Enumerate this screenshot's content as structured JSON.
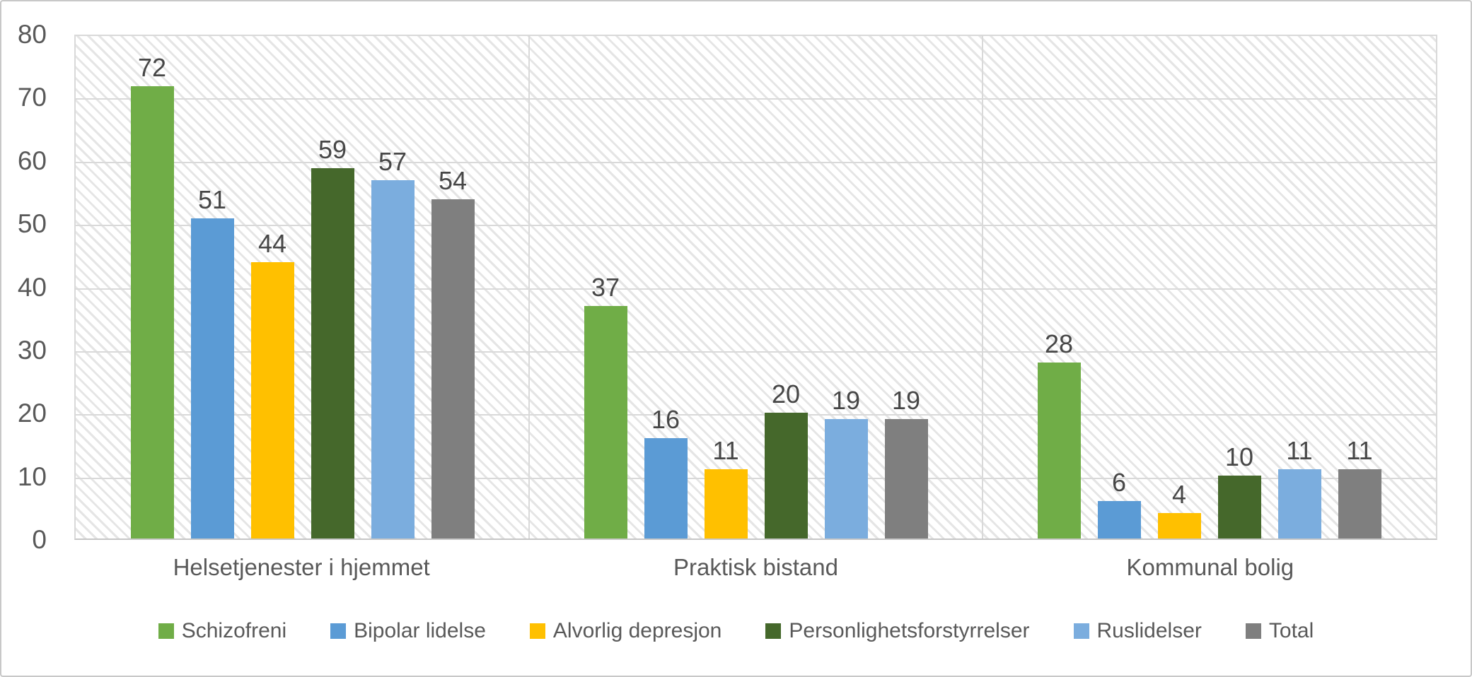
{
  "chart_data": {
    "type": "bar",
    "title": "",
    "xlabel": "",
    "ylabel": "",
    "categories": [
      "Helsetjenester i hjemmet",
      "Praktisk bistand",
      "Kommunal bolig"
    ],
    "series": [
      {
        "name": "Schizofreni",
        "color": "#70AD47",
        "values": [
          72,
          37,
          28
        ]
      },
      {
        "name": "Bipolar lidelse",
        "color": "#5B9BD5",
        "values": [
          51,
          16,
          6
        ]
      },
      {
        "name": "Alvorlig depresjon",
        "color": "#FFC000",
        "values": [
          44,
          11,
          4
        ]
      },
      {
        "name": "Personlighetsforstyrrelser",
        "color": "#45682B",
        "values": [
          59,
          20,
          10
        ]
      },
      {
        "name": "Ruslidelser",
        "color": "#7BADDE",
        "values": [
          57,
          19,
          11
        ]
      },
      {
        "name": "Total",
        "color": "#7F7F7F",
        "values": [
          54,
          19,
          11
        ]
      }
    ],
    "y_axis": {
      "min": 0,
      "max": 80,
      "tick_step": 10,
      "ticks": [
        0,
        10,
        20,
        30,
        40,
        50,
        60,
        70,
        80
      ]
    },
    "data_labels": true,
    "grid": {
      "horizontal": true,
      "vertical_category_separators": true
    },
    "legend": {
      "position": "bottom"
    },
    "colors": {
      "plot_hatch_line": "#E5E5E5",
      "gridline": "#D9D9D9",
      "plot_border": "#D9D9D9",
      "axis_line": "#C6C6C6",
      "tick_text": "#595959",
      "category_text": "#595959",
      "legend_text": "#595959",
      "data_label_text": "#474747",
      "frame_border": "#C8C8C8",
      "background": "#FFFFFF"
    }
  }
}
